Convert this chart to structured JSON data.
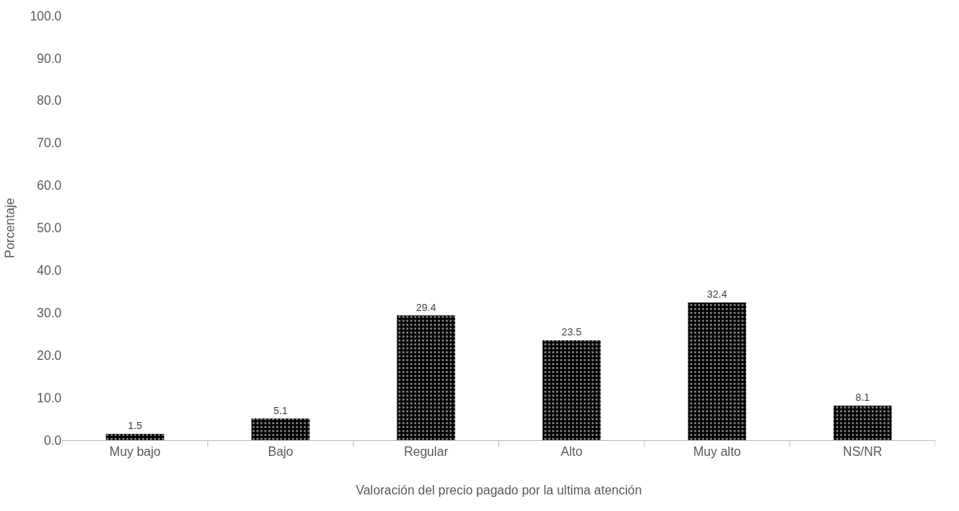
{
  "chart_data": {
    "type": "bar",
    "xlabel": "Valoración del precio pagado por la ultima atención",
    "ylabel": "Porcentaje",
    "categories": [
      "Muy bajo",
      "Bajo",
      "Regular",
      "Alto",
      "Muy alto",
      "NS/NR"
    ],
    "values": [
      1.5,
      5.1,
      29.4,
      23.5,
      32.4,
      8.1
    ],
    "color": "#000000",
    "ylim": [
      0,
      100
    ],
    "yticks": [
      {
        "value": 0,
        "label": "0.0"
      },
      {
        "value": 10,
        "label": "10.0"
      },
      {
        "value": 20,
        "label": "20.0"
      },
      {
        "value": 30,
        "label": "30.0"
      },
      {
        "value": 40,
        "label": "40.0"
      },
      {
        "value": 50,
        "label": "50.0"
      },
      {
        "value": 60,
        "label": "60.0"
      },
      {
        "value": 70,
        "label": "70.0"
      },
      {
        "value": 80,
        "label": "80.0"
      },
      {
        "value": 90,
        "label": "90.0"
      },
      {
        "value": 100,
        "label": "100.0"
      }
    ],
    "data_labels": true
  }
}
